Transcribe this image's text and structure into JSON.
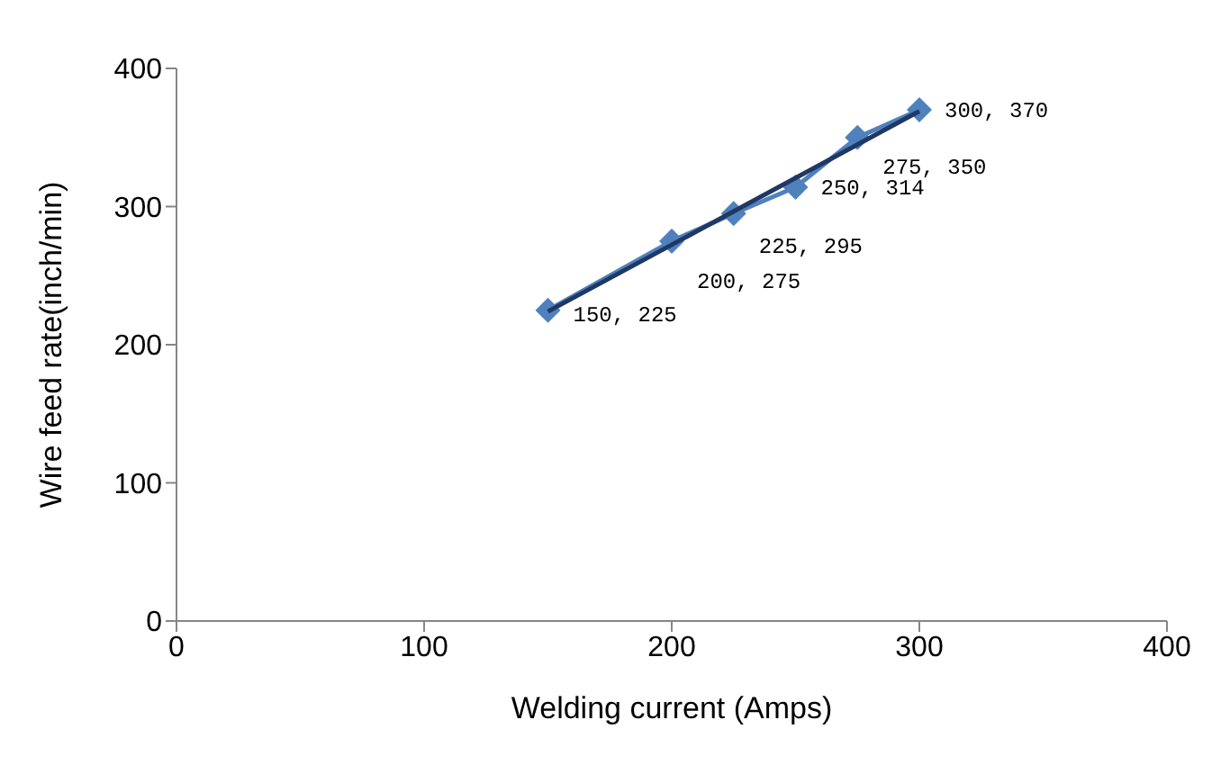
{
  "chart_data": {
    "type": "line",
    "xlabel": "Welding current (Amps)",
    "ylabel": "Wire feed rate(inch/min)",
    "xlim": [
      0,
      400
    ],
    "xticks": [
      0,
      100,
      200,
      300,
      400
    ],
    "ylim": [
      0,
      400
    ],
    "yticks": [
      0,
      100,
      200,
      300,
      400
    ],
    "series": [
      {
        "color": "#4f81bd",
        "x": [
          150,
          200,
          225,
          250,
          275,
          300
        ],
        "values": [
          225,
          275,
          295,
          314,
          350,
          370
        ],
        "marker": "diamond",
        "value_labels": [
          "150, 225",
          "200, 275",
          "225, 295",
          "250, 314",
          "275, 350",
          "300, 370"
        ]
      },
      {
        "color": "#1f3864",
        "x": [
          150,
          300
        ],
        "values": [
          224,
          369
        ],
        "marker": "none"
      }
    ]
  }
}
